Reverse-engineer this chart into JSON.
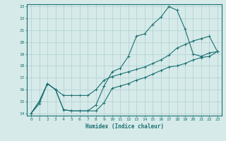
{
  "xlabel": "Humidex (Indice chaleur)",
  "ylabel": "",
  "bg_color": "#d6eaea",
  "grid_color": "#b0cece",
  "line_color": "#1a7070",
  "xlim": [
    -0.5,
    23.5
  ],
  "ylim": [
    13.8,
    23.2
  ],
  "xticks": [
    0,
    1,
    2,
    3,
    4,
    5,
    6,
    7,
    8,
    9,
    10,
    11,
    12,
    13,
    14,
    15,
    16,
    17,
    18,
    19,
    20,
    21,
    22,
    23
  ],
  "yticks": [
    14,
    15,
    16,
    17,
    18,
    19,
    20,
    21,
    22,
    23
  ],
  "line1_x": [
    0,
    1,
    2,
    3,
    4,
    5,
    6,
    7,
    8,
    9,
    10,
    11,
    12,
    13,
    14,
    15,
    16,
    17,
    18,
    19,
    20,
    21,
    22,
    23
  ],
  "line1_y": [
    14,
    15,
    16.5,
    16,
    14.3,
    14.2,
    14.2,
    14.2,
    14.7,
    16.3,
    17.5,
    17.8,
    18.8,
    20.5,
    20.7,
    21.5,
    22.1,
    23.0,
    22.7,
    21.1,
    19.0,
    18.8,
    19.1,
    19.2
  ],
  "line2_x": [
    0,
    1,
    2,
    3,
    4,
    5,
    6,
    7,
    8,
    9,
    10,
    11,
    12,
    13,
    14,
    15,
    16,
    17,
    18,
    19,
    20,
    21,
    22,
    23
  ],
  "line2_y": [
    14,
    15,
    16.5,
    16,
    15.5,
    15.5,
    15.5,
    15.5,
    16.0,
    16.8,
    17.1,
    17.3,
    17.5,
    17.7,
    17.9,
    18.2,
    18.5,
    18.9,
    19.5,
    19.8,
    20.1,
    20.3,
    20.5,
    19.2
  ],
  "line3_x": [
    0,
    1,
    2,
    3,
    4,
    5,
    6,
    7,
    8,
    9,
    10,
    11,
    12,
    13,
    14,
    15,
    16,
    17,
    18,
    19,
    20,
    21,
    22,
    23
  ],
  "line3_y": [
    14,
    14.8,
    16.5,
    16,
    14.3,
    14.2,
    14.2,
    14.2,
    14.2,
    14.9,
    16.1,
    16.3,
    16.5,
    16.8,
    17.0,
    17.3,
    17.6,
    17.9,
    18.0,
    18.2,
    18.5,
    18.7,
    18.8,
    19.2
  ]
}
